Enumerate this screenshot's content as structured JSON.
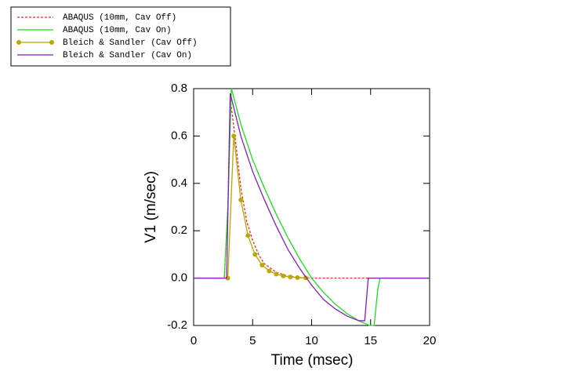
{
  "chart_data": {
    "type": "line",
    "xlabel": "Time (msec)",
    "ylabel": "V1 (m/sec)",
    "xlim": [
      0,
      20
    ],
    "ylim": [
      -0.2,
      0.8
    ],
    "xticks": [
      0,
      5,
      10,
      15,
      20
    ],
    "yticks": [
      -0.2,
      {
        "value": 0,
        "label": "0.0"
      },
      0.2,
      0.4,
      0.6,
      0.8
    ],
    "legend": "upper left",
    "series": [
      {
        "name": "ABAQUS (10mm, Cav Off)",
        "color": "#e0302a",
        "linestyle": "dashed",
        "x": [
          0,
          2.6,
          2.9,
          3.1,
          3.5,
          4,
          4.5,
          5,
          5.5,
          6,
          7,
          8,
          9,
          10,
          20
        ],
        "values": [
          0,
          0,
          0.3,
          0.76,
          0.6,
          0.38,
          0.24,
          0.16,
          0.1,
          0.06,
          0.025,
          0.008,
          0.002,
          0,
          0
        ]
      },
      {
        "name": "ABAQUS (10mm, Cav On)",
        "color": "#22d822",
        "linestyle": "solid",
        "x": [
          0,
          2.6,
          2.9,
          3.2,
          4,
          5,
          6,
          7,
          8,
          9,
          10,
          11,
          12,
          13,
          14,
          14.9,
          15.3,
          15.6,
          15.8,
          20
        ],
        "values": [
          0,
          0,
          0.3,
          0.8,
          0.65,
          0.5,
          0.38,
          0.27,
          0.17,
          0.08,
          0,
          -0.06,
          -0.11,
          -0.15,
          -0.18,
          -0.2,
          -0.2,
          -0.05,
          0,
          0
        ]
      },
      {
        "name": "Bleich & Sandler (Cav Off)",
        "color": "#b8a800",
        "linestyle": "solid",
        "marker": "o",
        "x": [
          2.9,
          3.4,
          4,
          4.6,
          5.2,
          5.8,
          6.4,
          7,
          7.6,
          8.2,
          8.8,
          9.5
        ],
        "values": [
          0,
          0.6,
          0.33,
          0.18,
          0.1,
          0.055,
          0.03,
          0.017,
          0.009,
          0.005,
          0.002,
          0.001
        ]
      },
      {
        "name": "Bleich & Sandler (Cav On)",
        "color": "#8020b0",
        "linestyle": "solid",
        "x": [
          0,
          2.8,
          3.1,
          4,
          5,
          6,
          7,
          8,
          9,
          10,
          11,
          12,
          13,
          14,
          14.5,
          14.8,
          20
        ],
        "values": [
          0,
          0,
          0.78,
          0.6,
          0.45,
          0.33,
          0.22,
          0.12,
          0.04,
          -0.03,
          -0.09,
          -0.13,
          -0.16,
          -0.18,
          -0.18,
          0,
          0
        ]
      }
    ]
  }
}
